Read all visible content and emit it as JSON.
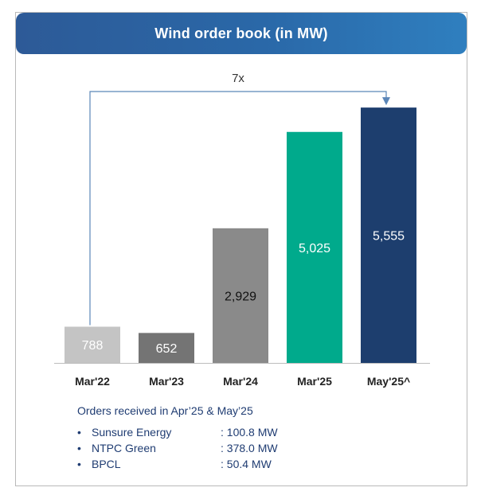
{
  "title": "Wind order book (in MW)",
  "colors": {
    "title_bar": "#2a68a8",
    "arrow": "#5b86b8",
    "text_dark": "#1f3c72"
  },
  "chart_data": {
    "type": "bar",
    "title": "Wind order book (in MW)",
    "xlabel": "",
    "ylabel": "",
    "ylim": [
      0,
      5800
    ],
    "grid": false,
    "legend": "none",
    "categories": [
      "Mar'22",
      "Mar'23",
      "Mar'24",
      "Mar'25",
      "May'25^"
    ],
    "values": [
      788,
      652,
      2929,
      5025,
      5555
    ],
    "value_labels": [
      "788",
      "652",
      "2,929",
      "5,025",
      "5,555"
    ],
    "bar_colors": [
      "#c4c4c4",
      "#747474",
      "#8a8a8a",
      "#00aa8c",
      "#1d3e6e"
    ],
    "label_colors": [
      "#ffffff",
      "#ffffff",
      "#111111",
      "#ffffff",
      "#ffffff"
    ],
    "annotation": {
      "text": "7x",
      "from_category": "Mar'22",
      "to_category": "May'25^"
    }
  },
  "notes": {
    "heading": "Orders received in Apr’25 & May’25",
    "items": [
      {
        "bullet": "•",
        "name": "Sunsure Energy",
        "value": ": 100.8 MW"
      },
      {
        "bullet": "•",
        "name": "NTPC Green",
        "value": ": 378.0 MW"
      },
      {
        "bullet": "•",
        "name": "BPCL",
        "value": ": 50.4 MW"
      }
    ]
  }
}
